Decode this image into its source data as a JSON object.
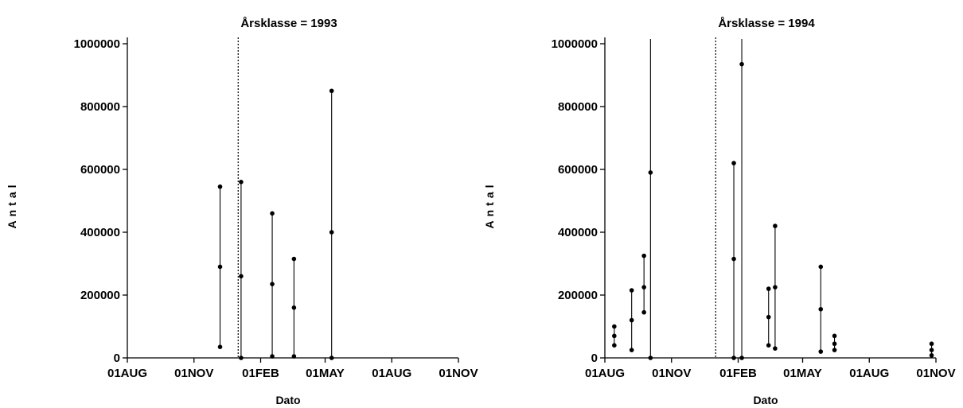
{
  "chart_data": [
    {
      "type": "high-low",
      "title": "Årsklasse = 1993",
      "xlabel": "Dato",
      "ylabel": "Antal",
      "xlim": [
        "1993-08-01",
        "1994-11-01"
      ],
      "ylim": [
        0,
        1000000
      ],
      "x_ticks": [
        "01AUG",
        "01NOV",
        "01FEB",
        "01MAY",
        "01AUG",
        "01NOV"
      ],
      "y_ticks": [
        "0",
        "200000",
        "400000",
        "600000",
        "800000",
        "1000000"
      ],
      "reference_line": "1994-01-01",
      "groups": [
        {
          "date": "1993-12-07",
          "low": 35000,
          "mid": 290000,
          "high": 545000
        },
        {
          "date": "1994-01-05",
          "low": 0,
          "mid": 260000,
          "high": 560000
        },
        {
          "date": "1994-02-17",
          "low": 5000,
          "mid": 235000,
          "high": 460000
        },
        {
          "date": "1994-03-19",
          "low": 5000,
          "mid": 160000,
          "high": 315000
        },
        {
          "date": "1994-05-10",
          "low": 0,
          "mid": 400000,
          "high": 850000
        }
      ]
    },
    {
      "type": "high-low",
      "title": "Årsklasse = 1994",
      "xlabel": "Dato",
      "ylabel": "Antal",
      "xlim": [
        "1994-08-01",
        "1995-11-01"
      ],
      "ylim": [
        0,
        1000000
      ],
      "x_ticks": [
        "01AUG",
        "01NOV",
        "01FEB",
        "01MAY",
        "01AUG",
        "01NOV"
      ],
      "y_ticks": [
        "0",
        "200000",
        "400000",
        "600000",
        "800000",
        "1000000"
      ],
      "reference_line": "1995-01-01",
      "groups": [
        {
          "date": "1994-08-14",
          "low": 40000,
          "mid": 70000,
          "high": 100000
        },
        {
          "date": "1994-09-07",
          "low": 25000,
          "mid": 120000,
          "high": 215000
        },
        {
          "date": "1994-09-24",
          "low": 145000,
          "mid": 225000,
          "high": 325000
        },
        {
          "date": "1994-10-03",
          "low": 0,
          "mid": 590000,
          "high": 1000000
        },
        {
          "date": "1995-01-26",
          "low": 0,
          "mid": 315000,
          "high": 620000
        },
        {
          "date": "1995-02-06",
          "low": 0,
          "mid": 935000,
          "high": 1000000
        },
        {
          "date": "1995-03-15",
          "low": 40000,
          "mid": 130000,
          "high": 220000
        },
        {
          "date": "1995-03-24",
          "low": 30000,
          "mid": 225000,
          "high": 420000
        },
        {
          "date": "1995-05-26",
          "low": 20000,
          "mid": 155000,
          "high": 290000
        },
        {
          "date": "1995-06-14",
          "low": 25000,
          "mid": 45000,
          "high": 70000
        },
        {
          "date": "1995-10-26",
          "low": 8000,
          "mid": 25000,
          "high": 45000
        }
      ]
    }
  ]
}
